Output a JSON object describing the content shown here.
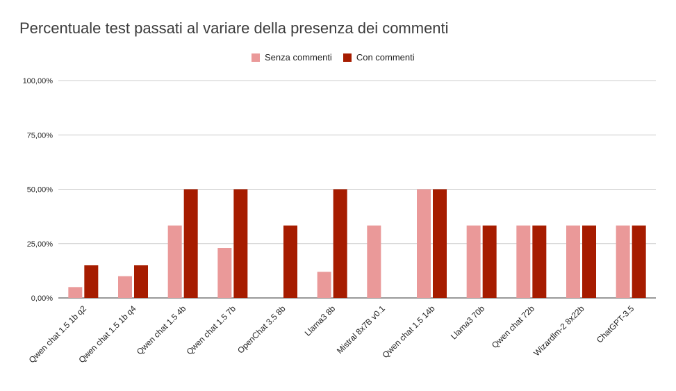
{
  "chart_data": {
    "type": "bar",
    "title": "Percentuale test passati al variare della presenza dei commenti",
    "categories": [
      "Qwen chat 1.5 1b q2",
      "Qwen chat 1.5 1b q4",
      "Qwen chat 1.5 4b",
      "Qwen chat 1.5 7b",
      "OpenChat 3.5 8b",
      "Llama3 8b",
      "Mistral 8x7B v0.1",
      "Qwen chat 1.5 14b",
      "Llama3 70b",
      "Qwen chat 72b",
      "Wizardlm-2 8x22b",
      "ChatGPT-3.5"
    ],
    "series": [
      {
        "name": "Senza commenti",
        "color": "#ea9999",
        "values": [
          5,
          10,
          33.33,
          23,
          0,
          12,
          33.33,
          50,
          33.33,
          33.33,
          33.33,
          33.33
        ]
      },
      {
        "name": "Con commenti",
        "color": "#a61c00",
        "values": [
          15,
          15,
          50,
          50,
          33.33,
          50,
          0,
          50,
          33.33,
          33.33,
          33.33,
          33.33
        ]
      }
    ],
    "y_ticks": [
      "0,00%",
      "25,00%",
      "50,00%",
      "75,00%",
      "100,00%"
    ],
    "ylim": [
      0,
      100
    ],
    "grid": true,
    "legend_position": "top-center",
    "xlabel": "",
    "ylabel": ""
  }
}
